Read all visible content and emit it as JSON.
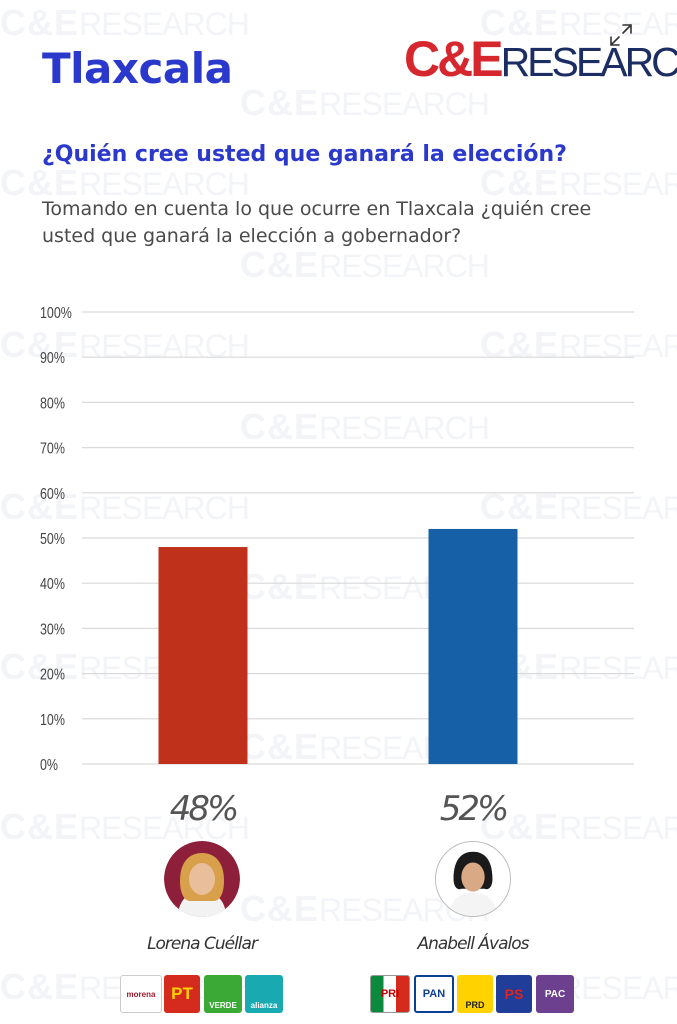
{
  "header": {
    "state": "Tlaxcala",
    "brand_ce": "C&E",
    "brand_research": "RESEARCH",
    "expand_icon": "expand-icon"
  },
  "question": "¿Quién cree usted que ganará la elección?",
  "subquestion": "Tomando en cuenta lo que ocurre en Tlaxcala ¿quién cree usted que ganará la elección a gobernador?",
  "chart_data": {
    "type": "bar",
    "categories": [
      "Lorena Cuéllar",
      "Anabell Ávalos"
    ],
    "values": [
      48,
      52
    ],
    "value_labels": [
      "48%",
      "52%"
    ],
    "colors": [
      "#c0311b",
      "#1560a6"
    ],
    "ylim": [
      0,
      100
    ],
    "yticks": [
      "0%",
      "10%",
      "20%",
      "30%",
      "40%",
      "50%",
      "60%",
      "70%",
      "80%",
      "90%",
      "100%"
    ],
    "grid": true,
    "title": "",
    "xlabel": "",
    "ylabel": ""
  },
  "candidates": [
    {
      "name": "Lorena Cuéllar",
      "parties": [
        "morena",
        "PT",
        "VERDE",
        "alianza"
      ]
    },
    {
      "name": "Anabell Ávalos",
      "parties": [
        "PRI",
        "PAN",
        "PRD",
        "PS",
        "PAC"
      ]
    }
  ],
  "watermark": {
    "ce": "C&E",
    "research": "RESEARCH"
  },
  "colors": {
    "title_blue": "#2a38cc",
    "brand_red": "#d6262e",
    "brand_navy": "#1c2d63"
  }
}
